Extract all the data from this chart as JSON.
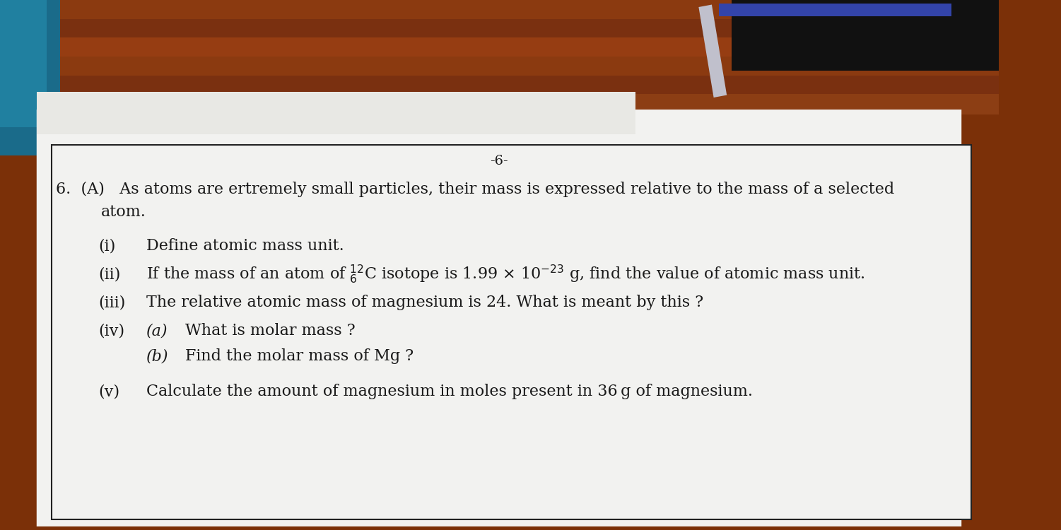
{
  "page_number": "-6-",
  "bg_top_color": "#8B3A10",
  "bg_left_color": "#1E6B8C",
  "paper_color": "#f2f2f0",
  "text_color": "#1a1a1a",
  "line1": "6.  (A)   As atoms are ertremely small particles, their mass is expressed relative to the mass of a selected",
  "line2": "atom.",
  "q_i_label": "(i)",
  "q_i_text": "Define atomic mass unit.",
  "q_ii_label": "(ii)",
  "q_ii_text": "If the mass of an atom of $^{12}_{6}$C isotope is 1.99 × 10$^{-23}$ g, find the value of atomic mass unit.",
  "q_iii_label": "(iii)",
  "q_iii_text": "The relative atomic mass of magnesium is 24. What is meant by this ?",
  "q_iv_label": "(iv)",
  "q_iva_label": "(a)",
  "q_iva_text": "What is molar mass ?",
  "q_ivb_label": "(b)",
  "q_ivb_text": "Find the molar mass of Mg ?",
  "q_v_label": "(v)",
  "q_v_text": "Calculate the amount of magnesium in moles present in 36 g of magnesium.",
  "font_size_main": 16,
  "font_size_page_num": 14,
  "font_family": "DejaVu Serif"
}
